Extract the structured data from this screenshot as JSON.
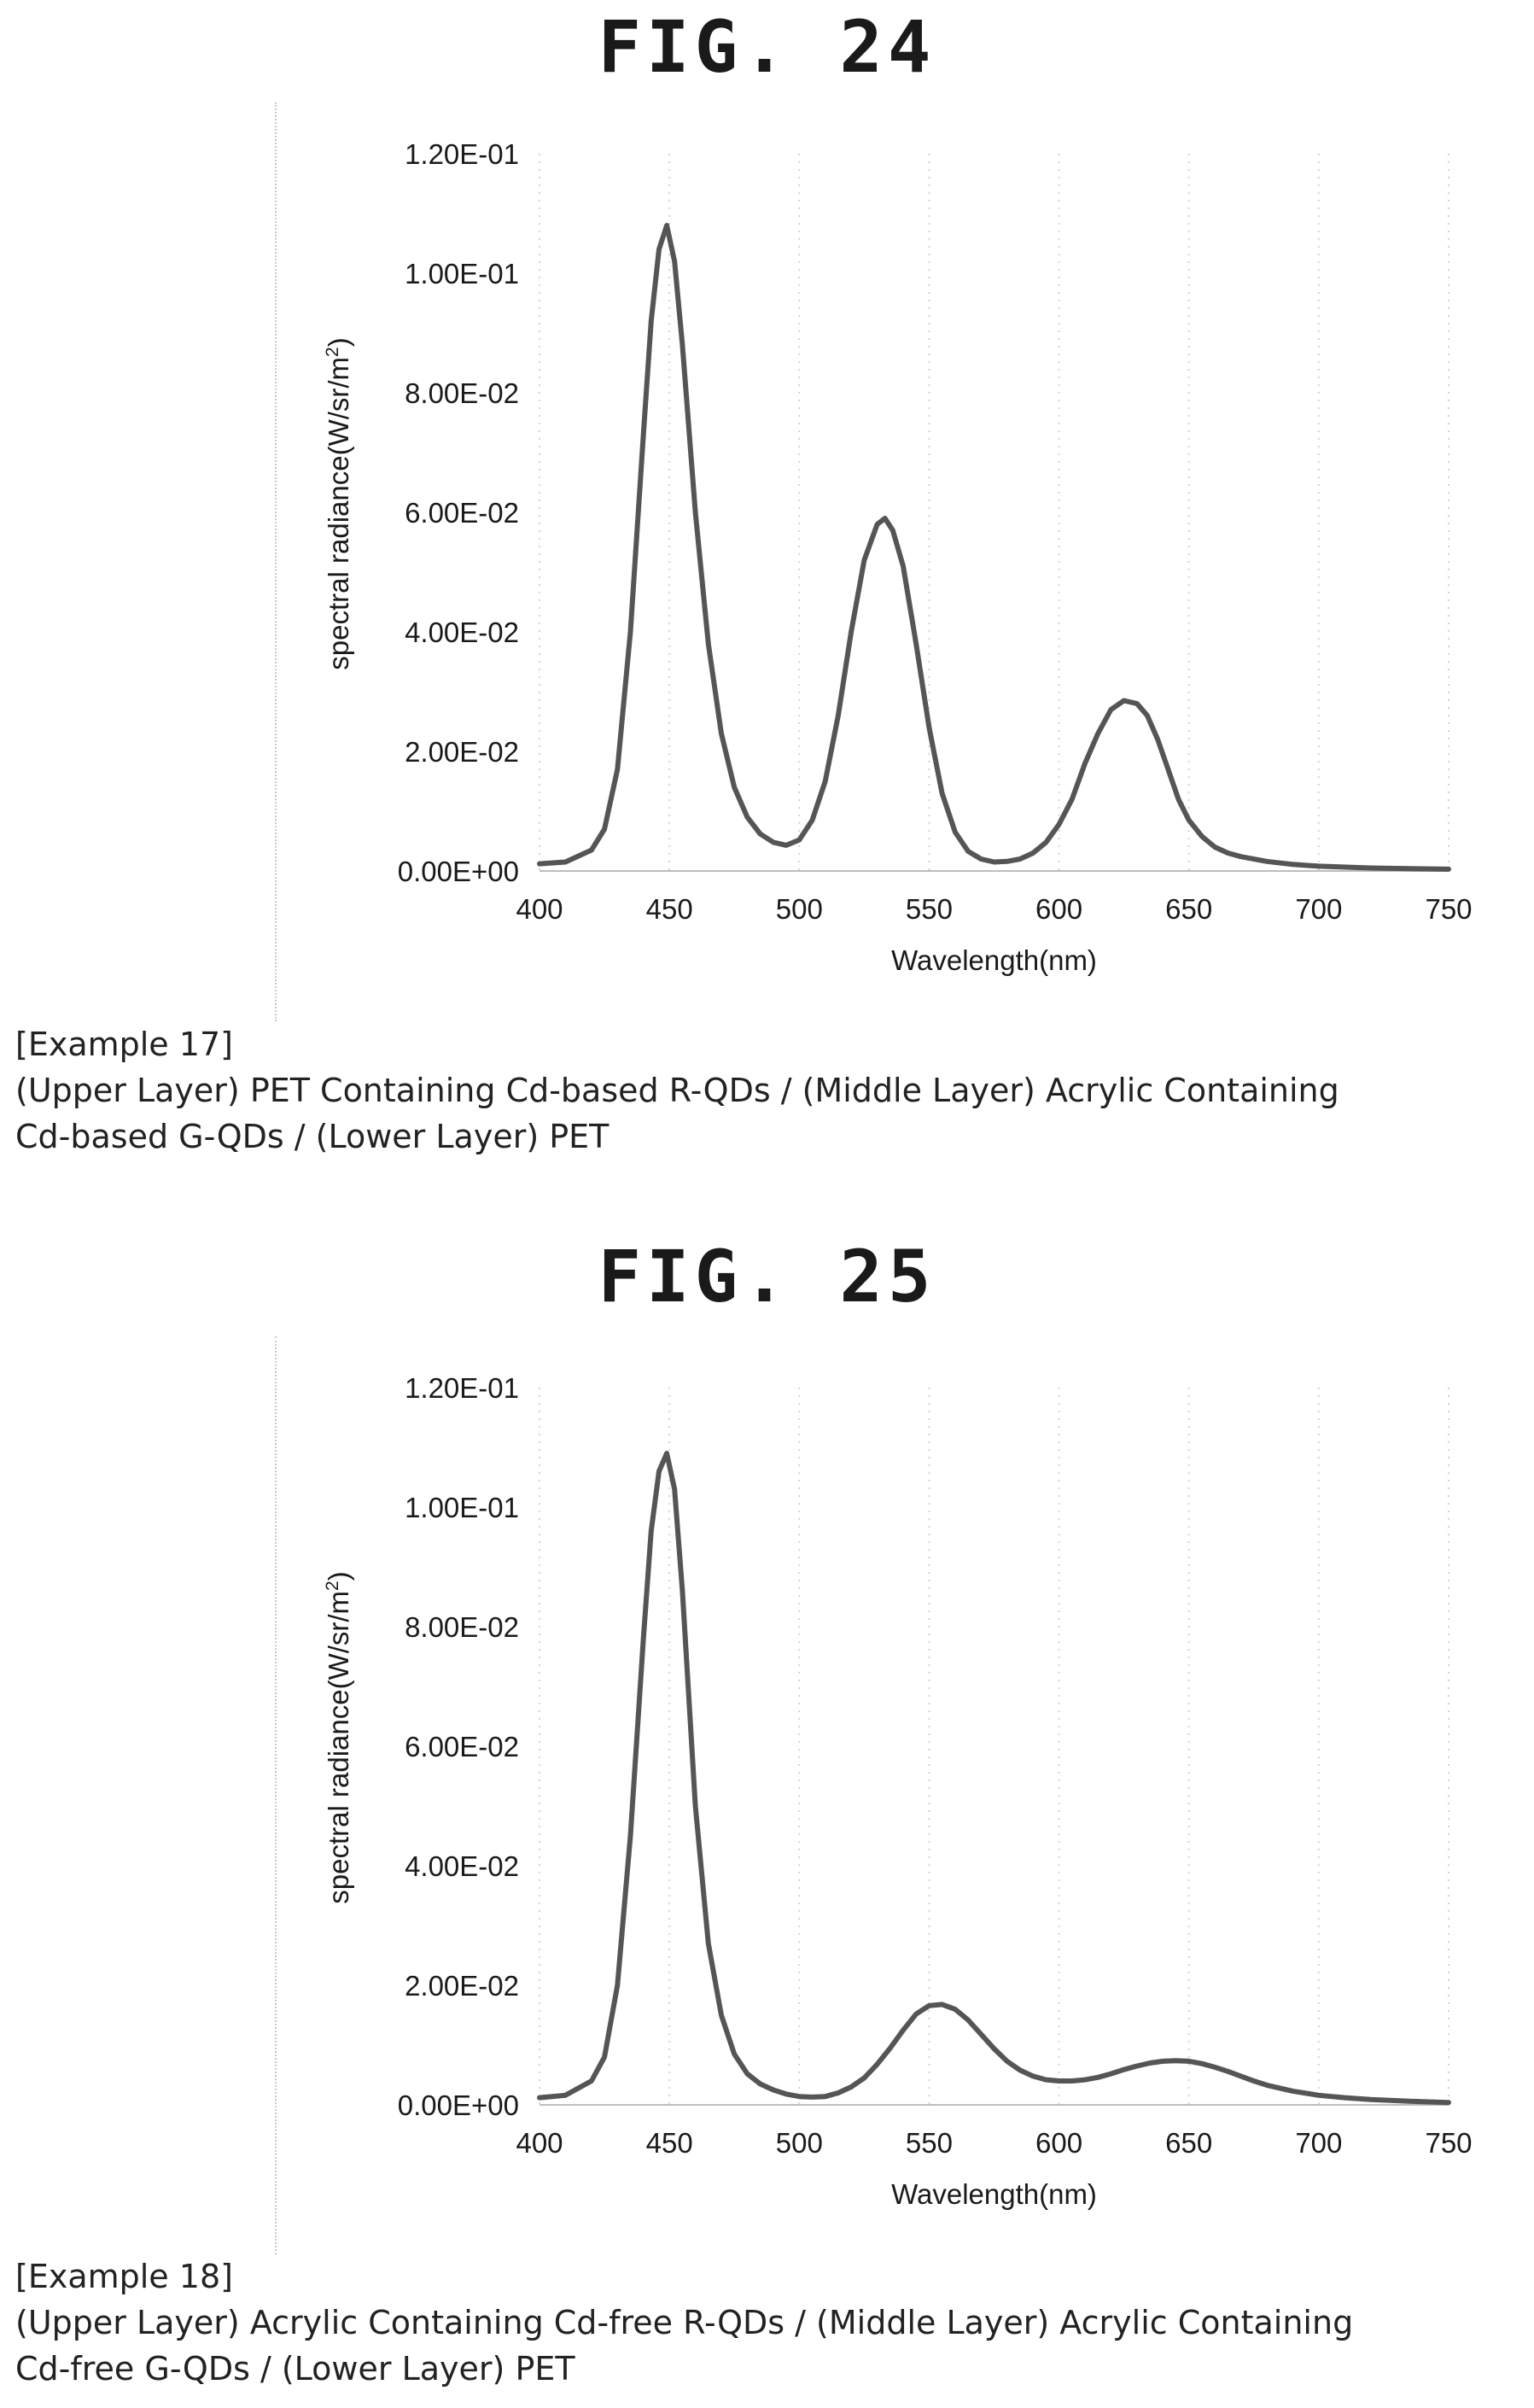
{
  "figures": [
    {
      "title": "FIG. 24",
      "caption": {
        "example": "[Example 17]",
        "line1": "(Upper Layer) PET Containing Cd-based R-QDs / (Middle Layer) Acrylic Containing",
        "line2": "Cd-based G-QDs / (Lower Layer) PET"
      }
    },
    {
      "title": "FIG. 25",
      "caption": {
        "example": "[Example 18]",
        "line1": "(Upper Layer) Acrylic Containing Cd-free R-QDs / (Middle Layer) Acrylic Containing",
        "line2": "Cd-free G-QDs / (Lower Layer) PET"
      }
    }
  ],
  "chart_data": [
    {
      "type": "line",
      "title": "",
      "xlabel": "Wavelength(nm)",
      "ylabel_main": "spectral radiance(W/sr/m",
      "ylabel_sup": "2",
      "ylabel_end": ")",
      "xlim": [
        400,
        750
      ],
      "ylim": [
        0,
        0.12
      ],
      "x_ticks": [
        400,
        450,
        500,
        550,
        600,
        650,
        700,
        750
      ],
      "x_tick_labels": [
        "400",
        "450",
        "500",
        "550",
        "600",
        "650",
        "700",
        "750"
      ],
      "y_ticks": [
        0,
        0.02,
        0.04,
        0.06,
        0.08,
        0.1,
        0.12
      ],
      "y_tick_labels": [
        "0.00E+00",
        "2.00E-02",
        "4.00E-02",
        "6.00E-02",
        "8.00E-02",
        "1.00E-01",
        "1.20E-01"
      ],
      "grid": "vertical dotted",
      "line_color": "#555555",
      "series": [
        {
          "x": [
            400,
            410,
            420,
            425,
            430,
            435,
            440,
            443,
            446,
            449,
            452,
            455,
            460,
            465,
            470,
            475,
            480,
            485,
            490,
            495,
            500,
            505,
            510,
            515,
            520,
            525,
            530,
            533,
            536,
            540,
            545,
            550,
            555,
            560,
            565,
            570,
            575,
            580,
            585,
            590,
            595,
            600,
            605,
            610,
            615,
            620,
            625,
            630,
            634,
            638,
            642,
            646,
            650,
            655,
            660,
            665,
            670,
            680,
            690,
            700,
            720,
            750
          ],
          "y": [
            0.0012,
            0.0015,
            0.0035,
            0.007,
            0.017,
            0.04,
            0.073,
            0.092,
            0.104,
            0.108,
            0.102,
            0.088,
            0.06,
            0.038,
            0.023,
            0.014,
            0.009,
            0.0062,
            0.0048,
            0.0043,
            0.0052,
            0.0085,
            0.015,
            0.026,
            0.04,
            0.052,
            0.058,
            0.059,
            0.057,
            0.051,
            0.038,
            0.024,
            0.013,
            0.0065,
            0.0033,
            0.002,
            0.0015,
            0.0016,
            0.002,
            0.003,
            0.0048,
            0.0078,
            0.012,
            0.018,
            0.023,
            0.027,
            0.0285,
            0.028,
            0.026,
            0.022,
            0.017,
            0.012,
            0.0085,
            0.0058,
            0.004,
            0.003,
            0.0024,
            0.0016,
            0.0011,
            0.0008,
            0.0005,
            0.0003
          ]
        }
      ]
    },
    {
      "type": "line",
      "title": "",
      "xlabel": "Wavelength(nm)",
      "ylabel_main": "spectral radiance(W/sr/m",
      "ylabel_sup": "2",
      "ylabel_end": ")",
      "xlim": [
        400,
        750
      ],
      "ylim": [
        0,
        0.12
      ],
      "x_ticks": [
        400,
        450,
        500,
        550,
        600,
        650,
        700,
        750
      ],
      "x_tick_labels": [
        "400",
        "450",
        "500",
        "550",
        "600",
        "650",
        "700",
        "750"
      ],
      "y_ticks": [
        0,
        0.02,
        0.04,
        0.06,
        0.08,
        0.1,
        0.12
      ],
      "y_tick_labels": [
        "0.00E+00",
        "2.00E-02",
        "4.00E-02",
        "6.00E-02",
        "8.00E-02",
        "1.00E-01",
        "1.20E-01"
      ],
      "grid": "vertical dotted",
      "line_color": "#555555",
      "series": [
        {
          "x": [
            400,
            410,
            420,
            425,
            430,
            435,
            440,
            443,
            446,
            449,
            452,
            455,
            460,
            465,
            470,
            475,
            480,
            485,
            490,
            495,
            500,
            505,
            510,
            515,
            520,
            525,
            530,
            535,
            540,
            545,
            550,
            555,
            560,
            565,
            570,
            575,
            580,
            585,
            590,
            595,
            600,
            605,
            610,
            615,
            620,
            625,
            630,
            635,
            640,
            645,
            650,
            655,
            660,
            665,
            670,
            675,
            680,
            690,
            700,
            710,
            720,
            735,
            750
          ],
          "y": [
            0.0012,
            0.0016,
            0.004,
            0.008,
            0.02,
            0.045,
            0.078,
            0.096,
            0.106,
            0.109,
            0.103,
            0.086,
            0.05,
            0.027,
            0.015,
            0.0085,
            0.0052,
            0.0035,
            0.0025,
            0.0018,
            0.0014,
            0.0013,
            0.0014,
            0.002,
            0.003,
            0.0045,
            0.0068,
            0.0095,
            0.0125,
            0.0152,
            0.0166,
            0.0168,
            0.016,
            0.0142,
            0.0118,
            0.0094,
            0.0073,
            0.0058,
            0.0048,
            0.0042,
            0.004,
            0.004,
            0.0042,
            0.0046,
            0.0052,
            0.0059,
            0.0065,
            0.007,
            0.0073,
            0.0074,
            0.0073,
            0.0069,
            0.0063,
            0.0056,
            0.0048,
            0.004,
            0.0033,
            0.0023,
            0.0016,
            0.0012,
            0.0009,
            0.0006,
            0.0004
          ]
        }
      ]
    }
  ]
}
